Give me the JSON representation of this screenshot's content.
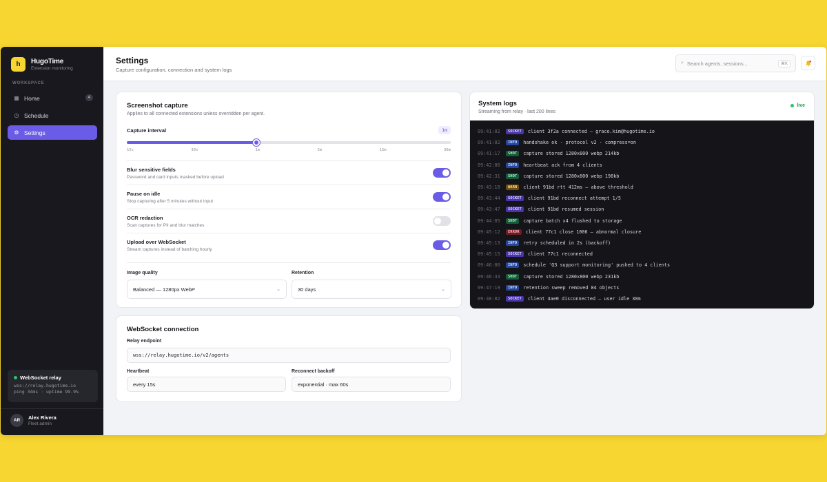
{
  "app": {
    "name": "HugoTime",
    "subtitle": "Extension monitoring",
    "logo_letter": "h"
  },
  "sidebar": {
    "section_label": "WORKSPACE",
    "items": [
      {
        "label": "Home",
        "icon": "grid-icon",
        "badge": "4"
      },
      {
        "label": "Schedule",
        "icon": "clock-icon"
      },
      {
        "label": "Settings",
        "icon": "gear-icon",
        "active": true
      }
    ],
    "relay": {
      "title": "WebSocket relay",
      "host": "wss://relay.hugotime.io",
      "stats": "ping 34ms · uptime 99.9%"
    },
    "user": {
      "initials": "AR",
      "name": "Alex Rivera",
      "role": "Fleet admin"
    }
  },
  "header": {
    "title": "Settings",
    "subtitle": "Capture configuration, connection and system logs",
    "search_placeholder": "Search agents, sessions...",
    "search_shortcut": "⌘K"
  },
  "capture": {
    "title": "Screenshot capture",
    "subtitle": "Applies to all connected extensions unless overridden per agent.",
    "interval_label": "Capture interval",
    "interval_value": "1m",
    "interval_fraction": 0.4,
    "ticks": [
      "15s",
      "30s",
      "1m",
      "5m",
      "15m",
      "30m"
    ],
    "toggles": [
      {
        "title": "Blur sensitive fields",
        "desc": "Password and card inputs masked before upload",
        "on": true
      },
      {
        "title": "Pause on idle",
        "desc": "Stop capturing after 5 minutes without input",
        "on": true
      },
      {
        "title": "OCR redaction",
        "desc": "Scan captures for PII and blur matches",
        "on": false
      },
      {
        "title": "Upload over WebSocket",
        "desc": "Stream captures instead of batching hourly",
        "on": true
      }
    ],
    "quality_label": "Image quality",
    "quality_value": "Balanced — 1280px WebP",
    "retention_label": "Retention",
    "retention_value": "30 days"
  },
  "websocket": {
    "title": "WebSocket connection",
    "endpoint_label": "Relay endpoint",
    "endpoint_value": "wss://relay.hugotime.io/v2/agents",
    "heartbeat_label": "Heartbeat",
    "heartbeat_value": "every 15s",
    "backoff_label": "Reconnect backoff",
    "backoff_value": "exponential · max 60s"
  },
  "logs": {
    "title": "System logs",
    "subtitle": "Streaming from relay · last 200 lines",
    "status": "live",
    "colors": {
      "live": "#1c9d52",
      "accent": "#6b5ce7"
    },
    "lines": [
      {
        "time": "09:41:02",
        "tag": "SOCKET",
        "msg": "client 3f2a connected — grace.kim@hugotime.io"
      },
      {
        "time": "09:41:02",
        "tag": "INFO",
        "msg": "handshake ok · protocol v2 · compress=on"
      },
      {
        "time": "09:41:17",
        "tag": "SHOT",
        "msg": "capture stored 1280x800 webp 214kb"
      },
      {
        "time": "09:42:06",
        "tag": "INFO",
        "msg": "heartbeat ack from 4 clients"
      },
      {
        "time": "09:42:31",
        "tag": "SHOT",
        "msg": "capture stored 1280x800 webp 198kb"
      },
      {
        "time": "09:43:10",
        "tag": "WARN",
        "msg": "client 91bd rtt 412ms — above threshold"
      },
      {
        "time": "09:43:44",
        "tag": "SOCKET",
        "msg": "client 91bd reconnect attempt 1/5"
      },
      {
        "time": "09:43:47",
        "tag": "SOCKET",
        "msg": "client 91bd resumed session"
      },
      {
        "time": "09:44:05",
        "tag": "SHOT",
        "msg": "capture batch x4 flushed to storage"
      },
      {
        "time": "09:45:12",
        "tag": "ERROR",
        "msg": "client 77c1 close 1006 — abnormal closure"
      },
      {
        "time": "09:45:13",
        "tag": "INFO",
        "msg": "retry scheduled in 2s (backoff)"
      },
      {
        "time": "09:45:15",
        "tag": "SOCKET",
        "msg": "client 77c1 reconnected"
      },
      {
        "time": "09:46:00",
        "tag": "INFO",
        "msg": "schedule 'Q3 support monitoring' pushed to 4 clients"
      },
      {
        "time": "09:46:33",
        "tag": "SHOT",
        "msg": "capture stored 1280x800 webp 231kb"
      },
      {
        "time": "09:47:19",
        "tag": "INFO",
        "msg": "retention sweep removed 84 objects"
      },
      {
        "time": "09:48:02",
        "tag": "SOCKET",
        "msg": "client 4ae0 disconnected — user idle 30m"
      }
    ]
  }
}
